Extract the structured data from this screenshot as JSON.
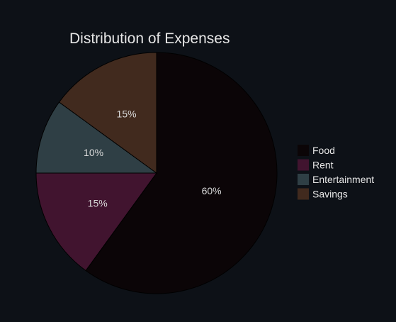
{
  "chart_data": {
    "type": "pie",
    "title": "Distribution of Expenses",
    "categories": [
      "Food",
      "Rent",
      "Entertainment",
      "Savings"
    ],
    "values": [
      60,
      15,
      10,
      15
    ],
    "value_labels": [
      "60%",
      "15%",
      "10%",
      "15%"
    ],
    "colors": [
      "#0b0507",
      "#41142f",
      "#2f3f45",
      "#412a1e"
    ],
    "legend_position": "right",
    "direction": "clockwise",
    "start": "top"
  },
  "theme": {
    "background": "#0d1117",
    "slice_border": "#000000",
    "text": "#e6e6e6"
  }
}
